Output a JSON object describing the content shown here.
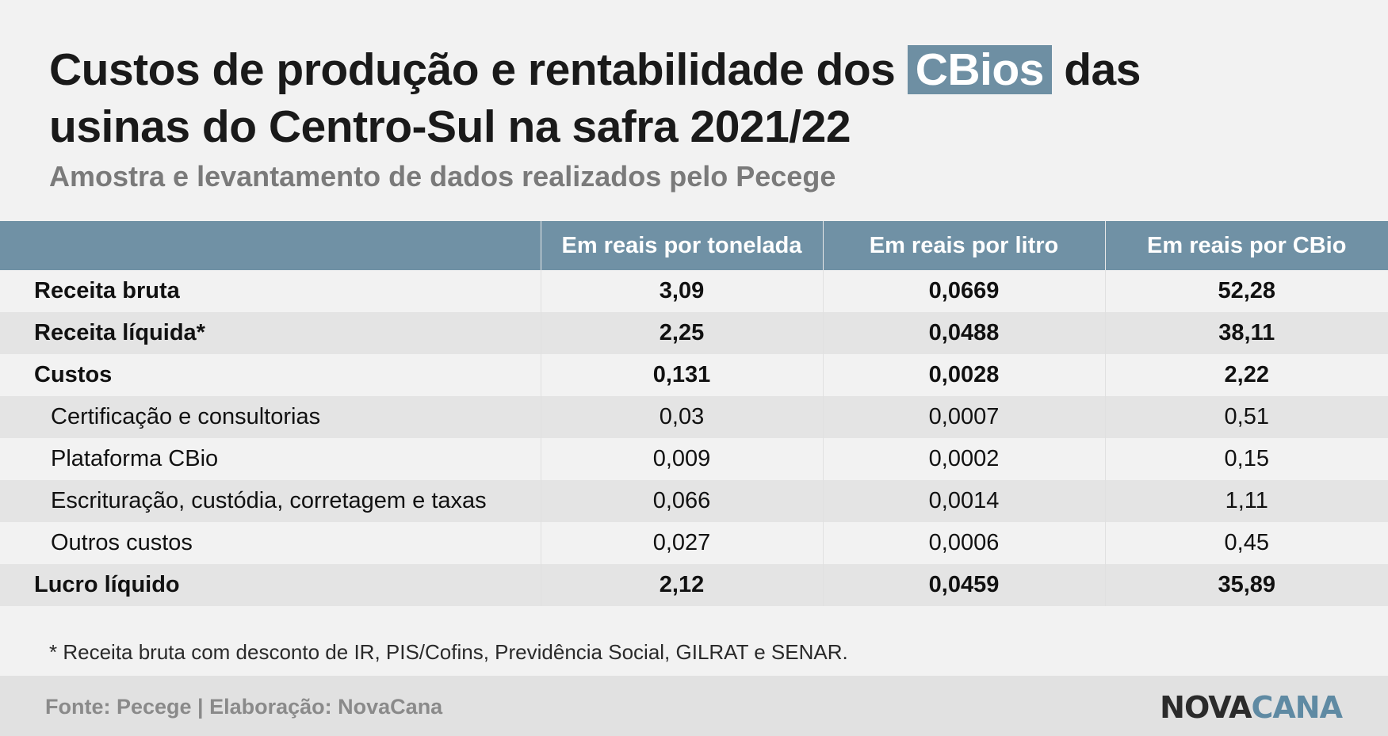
{
  "header": {
    "title_line1_before": "Custos de produção e rentabilidade dos",
    "title_highlight": "CBios",
    "title_line1_after": "das",
    "title_line2": "usinas do Centro-Sul na safra 2021/22",
    "subtitle": "Amostra e levantamento de dados realizados pelo Pecege"
  },
  "table": {
    "columns": [
      "",
      "Em reais por tonelada",
      "Em reais por litro",
      "Em reais por CBio"
    ],
    "rows": [
      {
        "label": "Receita bruta",
        "values": [
          "3,09",
          "0,0669",
          "52,28"
        ]
      },
      {
        "label": "Receita líquida*",
        "values": [
          "2,25",
          "0,0488",
          "38,11"
        ]
      },
      {
        "label": "Custos",
        "values": [
          "0,131",
          "0,0028",
          "2,22"
        ]
      },
      {
        "label": "Certificação e consultorias",
        "values": [
          "0,03",
          "0,0007",
          "0,51"
        ]
      },
      {
        "label": "Plataforma CBio",
        "values": [
          "0,009",
          "0,0002",
          "0,15"
        ]
      },
      {
        "label": "Escrituração, custódia, corretagem e taxas",
        "values": [
          "0,066",
          "0,0014",
          "1,11"
        ]
      },
      {
        "label": "Outros custos",
        "values": [
          "0,027",
          "0,0006",
          "0,45"
        ]
      },
      {
        "label": "Lucro líquido",
        "values": [
          "2,12",
          "0,0459",
          "35,89"
        ]
      }
    ]
  },
  "footnote": "* Receita bruta com desconto de IR, PIS/Cofins, Previdência Social, GILRAT e SENAR.",
  "footer": {
    "source": "Fonte: Pecege | Elaboração: NovaCana",
    "logo_part1": "NOVA",
    "logo_part2": "CANA"
  }
}
